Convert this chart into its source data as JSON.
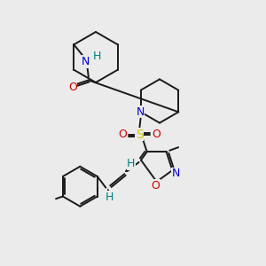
{
  "background_color": "#ebebeb",
  "figsize": [
    3.0,
    3.0
  ],
  "dpi": 100,
  "atom_colors": {
    "C": "#1a1a1a",
    "N": "#0000cc",
    "O": "#cc0000",
    "S": "#cccc00",
    "H": "#008080"
  },
  "bond_color": "#1a1a1a",
  "bond_lw": 1.4,
  "xlim": [
    0,
    10
  ],
  "ylim": [
    0,
    10
  ]
}
